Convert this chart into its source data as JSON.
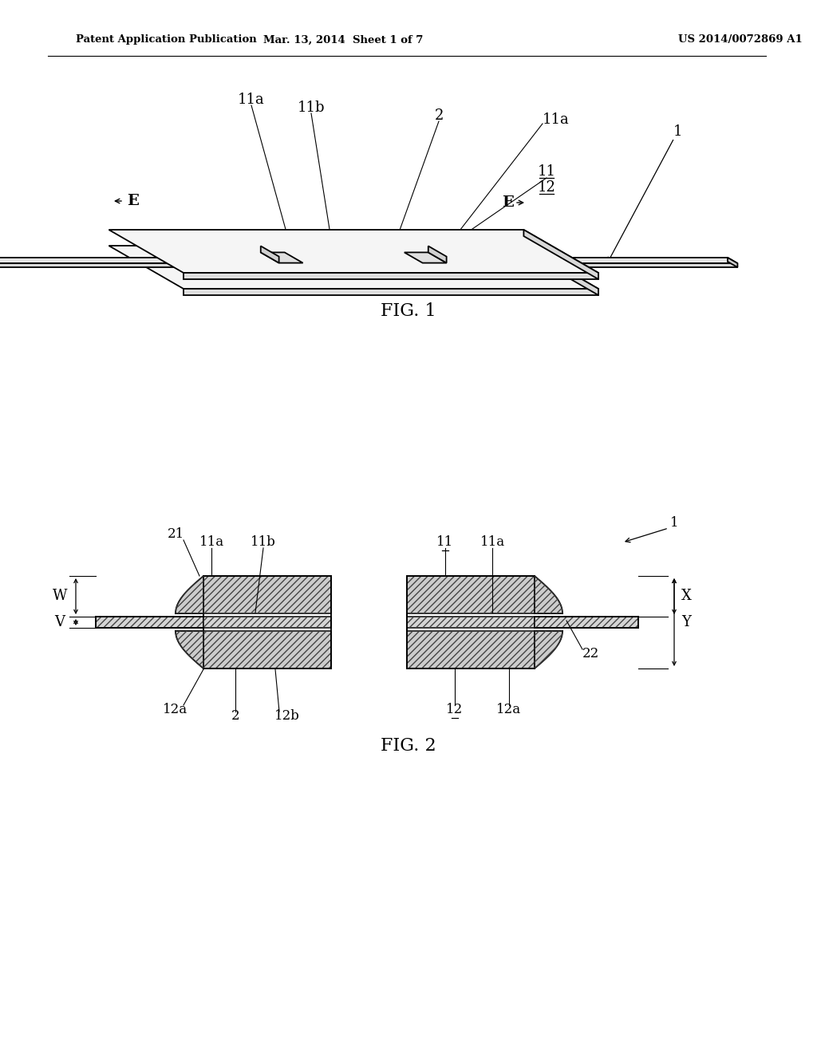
{
  "background_color": "#ffffff",
  "line_color": "#000000",
  "header_left": "Patent Application Publication",
  "header_center": "Mar. 13, 2014  Sheet 1 of 7",
  "header_right": "US 2014/0072869 A1",
  "fig1_label": "FIG. 1",
  "fig2_label": "FIG. 2"
}
